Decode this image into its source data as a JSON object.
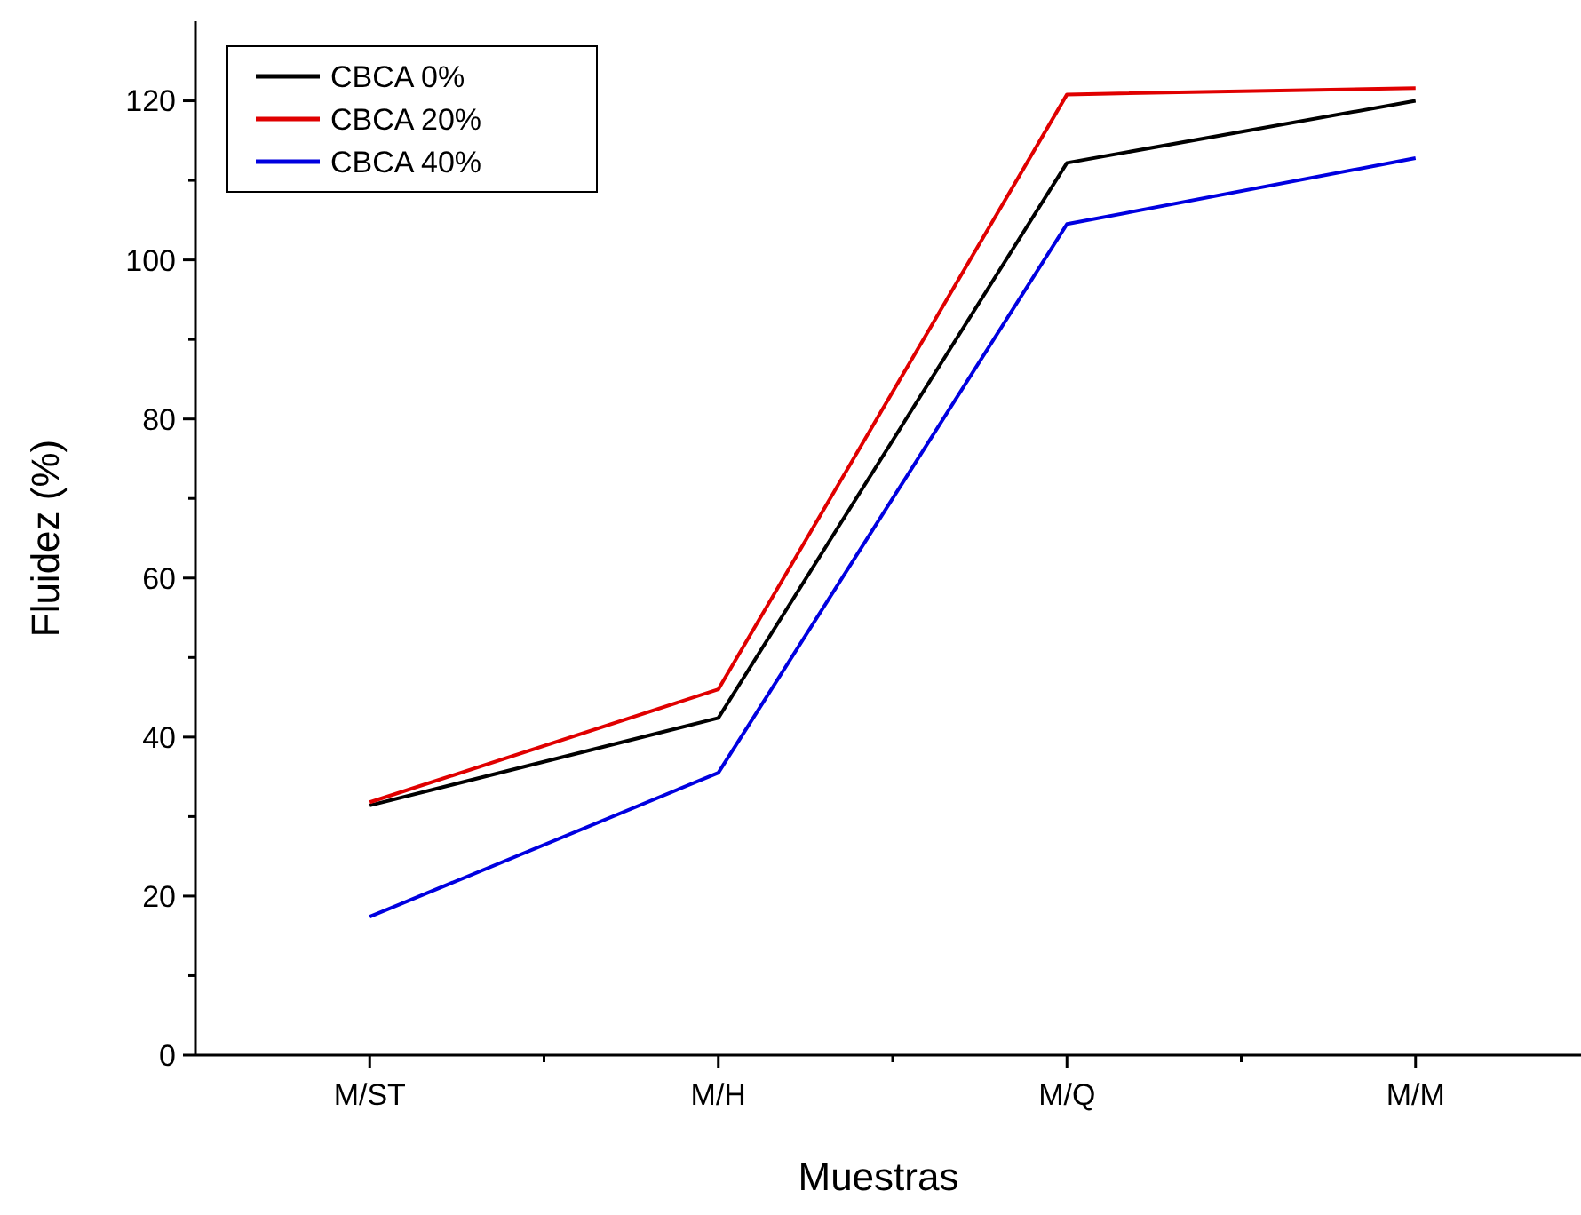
{
  "chart_data": {
    "type": "line",
    "xlabel": "Muestras",
    "ylabel": "Fluidez (%)",
    "categories": [
      "M/ST",
      "M/H",
      "M/Q",
      "M/M"
    ],
    "series": [
      {
        "name": "CBCA 0%",
        "color": "#000000",
        "values": [
          31.4,
          42.4,
          112.2,
          120.0
        ]
      },
      {
        "name": "CBCA 20%",
        "color": "#e00000",
        "values": [
          31.8,
          46.0,
          120.8,
          121.6
        ]
      },
      {
        "name": "CBCA 40%",
        "color": "#0000e0",
        "values": [
          17.4,
          35.5,
          104.5,
          112.8
        ]
      }
    ],
    "ylim": [
      0,
      130
    ],
    "yticks": [
      0,
      {
        "value": 10,
        "label": null
      },
      20,
      {
        "value": 30,
        "label": null
      },
      40,
      {
        "value": 50,
        "label": null
      },
      60,
      {
        "value": 70,
        "label": null
      },
      80,
      {
        "value": 90,
        "label": null
      },
      100,
      {
        "value": 110,
        "label": null
      },
      120
    ],
    "grid": false,
    "legend": "top left",
    "marker": "none",
    "line_style": "solid"
  }
}
